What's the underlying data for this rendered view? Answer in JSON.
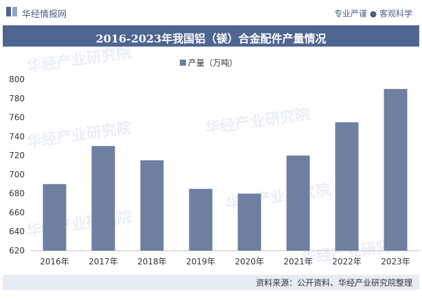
{
  "header": {
    "brand": "华经情报网",
    "tagline": "专业严谨 ● 客观科学"
  },
  "chart_data": {
    "type": "bar",
    "title": "2016-2023年我国铝（镁）合金配件产量情况",
    "categories": [
      "2016年",
      "2017年",
      "2018年",
      "2019年",
      "2020年",
      "2021年",
      "2022年",
      "2023年"
    ],
    "series": [
      {
        "name": "产量（万吨）",
        "values": [
          690,
          730,
          715,
          685,
          680,
          720,
          755,
          790
        ]
      }
    ],
    "yticks": [
      620,
      640,
      660,
      680,
      700,
      720,
      740,
      760,
      780,
      800
    ],
    "ylim": [
      620,
      800
    ],
    "legend": "top",
    "grid": false,
    "colors": {
      "bar": "#6f7fa2",
      "title_bg": "#4f6592"
    }
  },
  "footer": {
    "source": "资料来源：公开资料、华经产业研究院整理"
  },
  "watermark": "华经产业研究院"
}
